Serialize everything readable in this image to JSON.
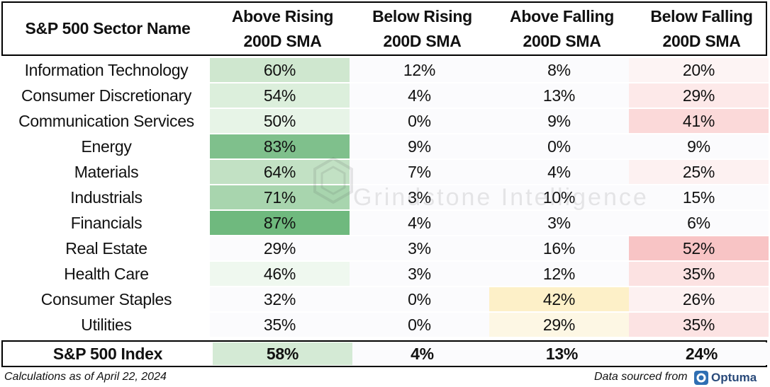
{
  "header": {
    "col0": "S&P 500 Sector Name",
    "col1_line1": "Above Rising",
    "col1_line2": "200D SMA",
    "col2_line1": "Below Rising",
    "col2_line2": "200D SMA",
    "col3_line1": "Above Falling",
    "col3_line2": "200D SMA",
    "col4_line1": "Below Falling",
    "col4_line2": "200D SMA"
  },
  "rows": [
    {
      "name": "Information Technology",
      "v": [
        "60%",
        "12%",
        "8%",
        "20%"
      ],
      "bg": [
        "#cfe7cf",
        "#fbfbfd",
        "#fbfbfd",
        "#fdf4f4"
      ]
    },
    {
      "name": "Consumer Discretionary",
      "v": [
        "54%",
        "4%",
        "13%",
        "29%"
      ],
      "bg": [
        "#dcefdc",
        "#fbfbfd",
        "#fbfbfd",
        "#fde9e9"
      ]
    },
    {
      "name": "Communication Services",
      "v": [
        "50%",
        "0%",
        "9%",
        "41%"
      ],
      "bg": [
        "#e7f4e7",
        "#fbfbfd",
        "#fbfbfd",
        "#fbd9d9"
      ]
    },
    {
      "name": "Energy",
      "v": [
        "83%",
        "9%",
        "0%",
        "9%"
      ],
      "bg": [
        "#7fc08c",
        "#fbfbfd",
        "#fbfbfd",
        "#fbfbfd"
      ]
    },
    {
      "name": "Materials",
      "v": [
        "64%",
        "7%",
        "4%",
        "25%"
      ],
      "bg": [
        "#c2e1c4",
        "#fbfbfd",
        "#fbfbfd",
        "#fdf1f1"
      ]
    },
    {
      "name": "Industrials",
      "v": [
        "71%",
        "3%",
        "10%",
        "15%"
      ],
      "bg": [
        "#a8d5ae",
        "#fbfbfd",
        "#fbfbfd",
        "#fbfbfd"
      ]
    },
    {
      "name": "Financials",
      "v": [
        "87%",
        "4%",
        "3%",
        "6%"
      ],
      "bg": [
        "#6fb97e",
        "#fbfbfd",
        "#fbfbfd",
        "#fbfbfd"
      ]
    },
    {
      "name": "Real Estate",
      "v": [
        "29%",
        "3%",
        "16%",
        "52%"
      ],
      "bg": [
        "#fbfbfd",
        "#fbfbfd",
        "#fbfbfd",
        "#f8c4c5"
      ]
    },
    {
      "name": "Health Care",
      "v": [
        "46%",
        "3%",
        "12%",
        "35%"
      ],
      "bg": [
        "#eff8ef",
        "#fbfbfd",
        "#fbfbfd",
        "#fce2e2"
      ]
    },
    {
      "name": "Consumer Staples",
      "v": [
        "32%",
        "0%",
        "42%",
        "26%"
      ],
      "bg": [
        "#fbfbfd",
        "#fbfbfd",
        "#fdf0c8",
        "#fdf1f1"
      ]
    },
    {
      "name": "Utilities",
      "v": [
        "35%",
        "0%",
        "29%",
        "35%"
      ],
      "bg": [
        "#fbfbfd",
        "#fbfbfd",
        "#fdf7e4",
        "#fce3e3"
      ]
    }
  ],
  "total": {
    "name": "S&P 500 Index",
    "v": [
      "58%",
      "4%",
      "13%",
      "24%"
    ],
    "bg": [
      "#d4ead5",
      "#fbfbfd",
      "#fbfbfd",
      "#fbfbfd"
    ]
  },
  "footer": {
    "left": "Calculations as of April 22, 2024",
    "right": "Data sourced from",
    "brand": "Optuma"
  },
  "watermark": "Grindstone Intelligence"
}
